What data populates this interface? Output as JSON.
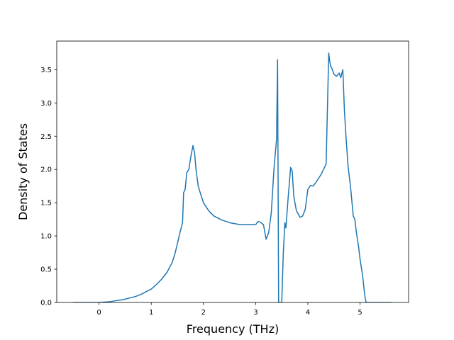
{
  "chart_data": {
    "type": "line",
    "title": "",
    "xlabel": "Frequency (THz)",
    "ylabel": "Density of States",
    "xlim": [
      -0.81,
      5.93
    ],
    "ylim": [
      0,
      3.93
    ],
    "grid": false,
    "xticks": [
      {
        "value": 0,
        "label": "0"
      },
      {
        "value": 1,
        "label": "1"
      },
      {
        "value": 2,
        "label": "2"
      },
      {
        "value": 3,
        "label": "3"
      },
      {
        "value": 4,
        "label": "4"
      },
      {
        "value": 5,
        "label": "5"
      }
    ],
    "yticks": [
      {
        "value": 0.0,
        "label": "0.0"
      },
      {
        "value": 0.5,
        "label": "0.5"
      },
      {
        "value": 1.0,
        "label": "1.0"
      },
      {
        "value": 1.5,
        "label": "1.5"
      },
      {
        "value": 2.0,
        "label": "2.0"
      },
      {
        "value": 2.5,
        "label": "2.5"
      },
      {
        "value": 3.0,
        "label": "3.0"
      },
      {
        "value": 3.5,
        "label": "3.5"
      }
    ],
    "series": [
      {
        "color": "#1f77b4",
        "x": [
          -0.5,
          0.0,
          0.2,
          0.35,
          0.45,
          0.55,
          0.6,
          0.7,
          0.8,
          0.9,
          1.0,
          1.1,
          1.2,
          1.3,
          1.4,
          1.45,
          1.5,
          1.55,
          1.6,
          1.62,
          1.65,
          1.68,
          1.72,
          1.76,
          1.8,
          1.83,
          1.86,
          1.9,
          1.95,
          2.0,
          2.1,
          2.2,
          2.35,
          2.5,
          2.7,
          2.9,
          3.0,
          3.05,
          3.1,
          3.15,
          3.2,
          3.25,
          3.3,
          3.35,
          3.4,
          3.42,
          3.44,
          3.47,
          3.5,
          3.53,
          3.56,
          3.58,
          3.62,
          3.67,
          3.7,
          3.73,
          3.78,
          3.85,
          3.9,
          3.95,
          4.0,
          4.05,
          4.1,
          4.15,
          4.25,
          4.35,
          4.4,
          4.42,
          4.44,
          4.46,
          4.5,
          4.55,
          4.6,
          4.63,
          4.67,
          4.7,
          4.73,
          4.77,
          4.82,
          4.87,
          4.9,
          4.93,
          4.97,
          5.0,
          5.05,
          5.08,
          5.1,
          5.12,
          5.2,
          5.3,
          5.6
        ],
        "y": [
          0.0,
          0.0,
          0.01,
          0.03,
          0.04,
          0.06,
          0.07,
          0.09,
          0.12,
          0.16,
          0.2,
          0.27,
          0.35,
          0.45,
          0.6,
          0.72,
          0.88,
          1.05,
          1.2,
          1.65,
          1.7,
          1.95,
          2.0,
          2.2,
          2.36,
          2.25,
          1.98,
          1.75,
          1.62,
          1.5,
          1.38,
          1.3,
          1.24,
          1.2,
          1.17,
          1.17,
          1.17,
          1.22,
          1.2,
          1.17,
          0.95,
          1.05,
          1.35,
          2.0,
          2.45,
          3.65,
          0.0,
          0.0,
          0.0,
          0.75,
          1.2,
          1.12,
          1.55,
          2.03,
          1.98,
          1.6,
          1.38,
          1.28,
          1.3,
          1.4,
          1.7,
          1.76,
          1.75,
          1.8,
          1.92,
          2.08,
          3.75,
          3.62,
          3.55,
          3.52,
          3.43,
          3.4,
          3.45,
          3.38,
          3.5,
          2.9,
          2.5,
          2.05,
          1.72,
          1.3,
          1.25,
          1.05,
          0.85,
          0.65,
          0.4,
          0.18,
          0.05,
          0.0,
          0.0,
          0.0,
          0.0
        ]
      }
    ]
  }
}
